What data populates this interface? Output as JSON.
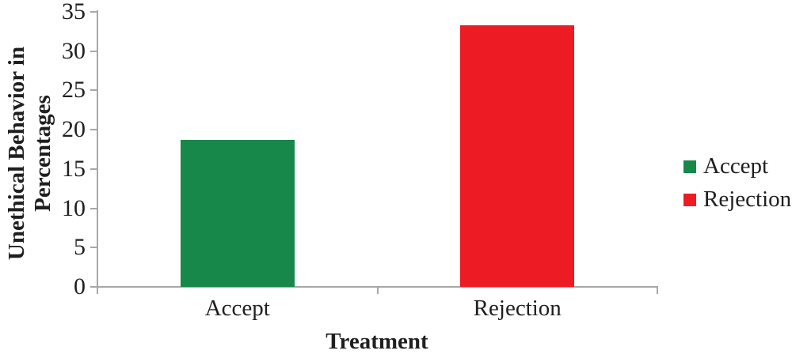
{
  "figure": {
    "xlabel": "Treatment",
    "ylabel_lines": [
      "Unethical Behavior in",
      "Percentages"
    ]
  },
  "chart_data": {
    "type": "bar",
    "title": "",
    "categories": [
      "Accept",
      "Rejection"
    ],
    "values": [
      18.7,
      33.3
    ],
    "bar_colors": [
      "#17884a",
      "#ed1c24"
    ],
    "xlabel": "Treatment",
    "ylabel": "Unethical Behavior in Percentages",
    "ylim": [
      0,
      35
    ],
    "yticks": [
      0,
      5,
      10,
      15,
      20,
      25,
      30,
      35
    ],
    "grid": false,
    "legend_position": "right",
    "legend": [
      {
        "label": "Accept",
        "color": "#17884a"
      },
      {
        "label": "Rejection",
        "color": "#ed1c24"
      }
    ]
  },
  "colors": {
    "axis": "#a7a7ab",
    "text": "#1f1f1f"
  }
}
